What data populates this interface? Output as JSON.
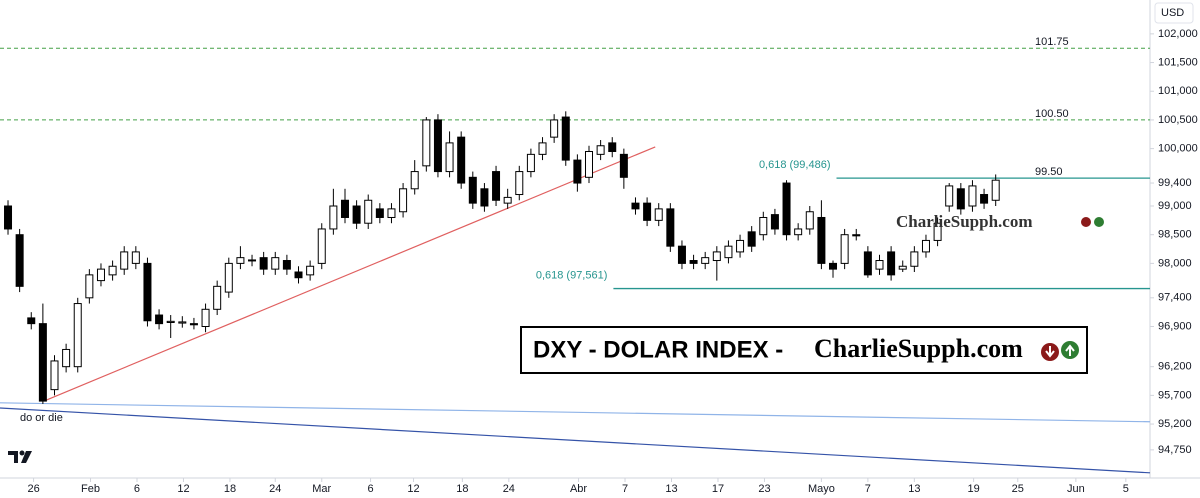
{
  "chart_data": {
    "type": "candlestick",
    "currency": "USD",
    "ylim": [
      94.26,
      102.59
    ],
    "yticks": [
      {
        "value": 102,
        "label": "102,000"
      },
      {
        "value": 101.5,
        "label": "101,500"
      },
      {
        "value": 101,
        "label": "101,000"
      },
      {
        "value": 100.5,
        "label": "100,500"
      },
      {
        "value": 100,
        "label": "100,000"
      },
      {
        "value": 99.4,
        "label": "99,400"
      },
      {
        "value": 99,
        "label": "99,000"
      },
      {
        "value": 98.5,
        "label": "98,500"
      },
      {
        "value": 98,
        "label": "98,000"
      },
      {
        "value": 97.4,
        "label": "97,400"
      },
      {
        "value": 96.9,
        "label": "96,900"
      },
      {
        "value": 96.2,
        "label": "96,200"
      },
      {
        "value": 95.7,
        "label": "95,700"
      },
      {
        "value": 95.2,
        "label": "95,200"
      },
      {
        "value": 94.75,
        "label": "94,750"
      }
    ],
    "xlim": [
      -0.69,
      98.28
    ],
    "xticks": [
      {
        "value": 2.2,
        "label": "26"
      },
      {
        "value": 7.1,
        "label": "Feb"
      },
      {
        "value": 11.1,
        "label": "6"
      },
      {
        "value": 15.1,
        "label": "12"
      },
      {
        "value": 19.1,
        "label": "18"
      },
      {
        "value": 23.0,
        "label": "24"
      },
      {
        "value": 27.0,
        "label": "Mar"
      },
      {
        "value": 31.2,
        "label": "6"
      },
      {
        "value": 34.9,
        "label": "12"
      },
      {
        "value": 39.1,
        "label": "18"
      },
      {
        "value": 43.1,
        "label": "24"
      },
      {
        "value": 49.1,
        "label": "Abr"
      },
      {
        "value": 53.1,
        "label": "7"
      },
      {
        "value": 57.1,
        "label": "13"
      },
      {
        "value": 61.1,
        "label": "17"
      },
      {
        "value": 65.1,
        "label": "23"
      },
      {
        "value": 70.0,
        "label": "Mayo"
      },
      {
        "value": 74.0,
        "label": "7"
      },
      {
        "value": 78.0,
        "label": "13"
      },
      {
        "value": 83.1,
        "label": "19"
      },
      {
        "value": 86.9,
        "label": "25"
      },
      {
        "value": 91.9,
        "label": "Jun"
      },
      {
        "value": 96.2,
        "label": "5"
      }
    ],
    "up_color": "#ffffff",
    "down_color": "#000000",
    "open": [
      99.0,
      98.5,
      97.05,
      96.95,
      95.8,
      96.2,
      96.2,
      97.4,
      97.7,
      97.8,
      97.9,
      98.0,
      98.0,
      97.1,
      96.97,
      96.96,
      96.95,
      96.9,
      97.2,
      97.5,
      98.0,
      98.05,
      98.1,
      97.9,
      98.05,
      97.85,
      97.8,
      98.0,
      98.6,
      99.1,
      99.0,
      98.7,
      98.95,
      98.8,
      98.9,
      99.3,
      99.7,
      100.5,
      99.6,
      100.2,
      99.5,
      99.3,
      99.6,
      99.05,
      99.2,
      99.6,
      99.9,
      100.2,
      100.55,
      99.8,
      99.5,
      99.9,
      100.1,
      99.9,
      99.05,
      99.05,
      98.75,
      98.95,
      98.3,
      98.05,
      98.0,
      98.05,
      98.1,
      98.2,
      98.55,
      98.5,
      98.85,
      99.4,
      98.5,
      98.6,
      98.8,
      98.0,
      98.0,
      98.5,
      98.2,
      97.9,
      98.2,
      97.9,
      97.95,
      98.2,
      98.4,
      99.0,
      99.3,
      99.0,
      99.2,
      99.1
    ],
    "high": [
      99.1,
      98.6,
      97.15,
      97.3,
      96.4,
      96.6,
      97.4,
      97.9,
      98.0,
      98.05,
      98.3,
      98.3,
      98.1,
      97.2,
      97.1,
      97.08,
      97.05,
      97.3,
      97.7,
      98.1,
      98.3,
      98.15,
      98.2,
      98.2,
      98.15,
      97.95,
      98.05,
      98.7,
      99.3,
      99.3,
      99.1,
      99.2,
      99.05,
      99.05,
      99.4,
      99.8,
      100.55,
      100.6,
      100.3,
      100.3,
      99.6,
      99.4,
      99.7,
      99.3,
      99.7,
      100.0,
      100.2,
      100.6,
      100.65,
      99.9,
      100.05,
      100.15,
      100.2,
      100.0,
      99.15,
      99.15,
      99.05,
      99.05,
      98.4,
      98.15,
      98.2,
      98.3,
      98.4,
      98.5,
      98.65,
      98.9,
      98.95,
      99.45,
      98.7,
      99.0,
      99.1,
      98.05,
      98.6,
      98.6,
      98.3,
      98.15,
      98.3,
      98.05,
      98.3,
      98.5,
      98.8,
      99.4,
      99.4,
      99.45,
      99.3,
      99.55
    ],
    "low": [
      98.5,
      97.5,
      96.85,
      95.55,
      95.7,
      96.1,
      96.1,
      97.3,
      97.6,
      97.7,
      97.8,
      97.9,
      96.9,
      96.85,
      96.7,
      96.88,
      96.85,
      96.8,
      97.1,
      97.4,
      97.9,
      97.95,
      97.8,
      97.8,
      97.8,
      97.65,
      97.7,
      97.9,
      98.5,
      98.7,
      98.6,
      98.6,
      98.7,
      98.7,
      98.8,
      99.2,
      99.6,
      99.5,
      99.5,
      99.3,
      98.95,
      98.9,
      99.0,
      98.95,
      99.1,
      99.5,
      99.8,
      100.1,
      99.7,
      99.25,
      99.4,
      99.8,
      99.85,
      99.3,
      98.85,
      98.65,
      98.65,
      98.2,
      97.9,
      97.9,
      97.9,
      97.7,
      98.0,
      98.1,
      98.2,
      98.4,
      98.5,
      98.4,
      98.4,
      98.5,
      97.9,
      97.75,
      97.9,
      98.4,
      97.75,
      97.8,
      97.7,
      97.85,
      97.85,
      98.1,
      98.3,
      98.9,
      98.85,
      98.9,
      98.95,
      99.0
    ],
    "close": [
      98.6,
      97.6,
      96.95,
      95.6,
      96.3,
      96.5,
      97.3,
      97.8,
      97.9,
      97.95,
      98.2,
      98.2,
      97.0,
      96.95,
      96.99,
      96.98,
      96.93,
      97.2,
      97.6,
      98.0,
      98.1,
      98.06,
      97.9,
      98.1,
      97.9,
      97.75,
      97.95,
      98.6,
      99.0,
      98.8,
      98.7,
      99.1,
      98.8,
      98.95,
      99.3,
      99.6,
      100.5,
      99.6,
      100.1,
      99.4,
      99.05,
      99.0,
      99.1,
      99.15,
      99.6,
      99.9,
      100.1,
      100.5,
      99.8,
      99.4,
      99.95,
      100.05,
      99.95,
      99.5,
      98.95,
      98.75,
      98.95,
      98.3,
      98.0,
      98.0,
      98.1,
      98.2,
      98.3,
      98.4,
      98.3,
      98.8,
      98.6,
      98.5,
      98.6,
      98.9,
      98.0,
      97.9,
      98.5,
      98.48,
      97.8,
      98.05,
      97.8,
      97.95,
      98.2,
      98.4,
      98.7,
      99.35,
      98.95,
      99.35,
      99.05,
      99.45
    ],
    "levels": [
      {
        "value": 101.75,
        "label": "101.75",
        "color": "#43a047"
      },
      {
        "value": 100.5,
        "label": "100.50",
        "color": "#43a047"
      }
    ],
    "fib_levels": [
      {
        "value": 99.486,
        "label": "0,618 (99,486)",
        "tag": "99.50",
        "x_start": 71.3,
        "color": "#26958f"
      },
      {
        "value": 97.561,
        "label": "0,618 (97,561)",
        "x_start": 52.1,
        "color": "#26958f"
      }
    ],
    "trendlines": [
      {
        "x": [
          3.2,
          55.7
        ],
        "y": [
          95.61,
          100.03
        ],
        "color": "#e06060"
      },
      {
        "x": [
          -0.69,
          98.28
        ],
        "y": [
          95.57,
          95.24
        ],
        "color": "#90b4e8"
      },
      {
        "x": [
          -0.69,
          98.28
        ],
        "y": [
          95.48,
          94.35
        ],
        "color": "#3553a8"
      }
    ],
    "annotations": {
      "low_note": "do or die",
      "banner_title": "DXY - DOLAR INDEX -",
      "banner_site": "CharlieSupph.com",
      "watermark": "CharlieSupph.com"
    }
  }
}
